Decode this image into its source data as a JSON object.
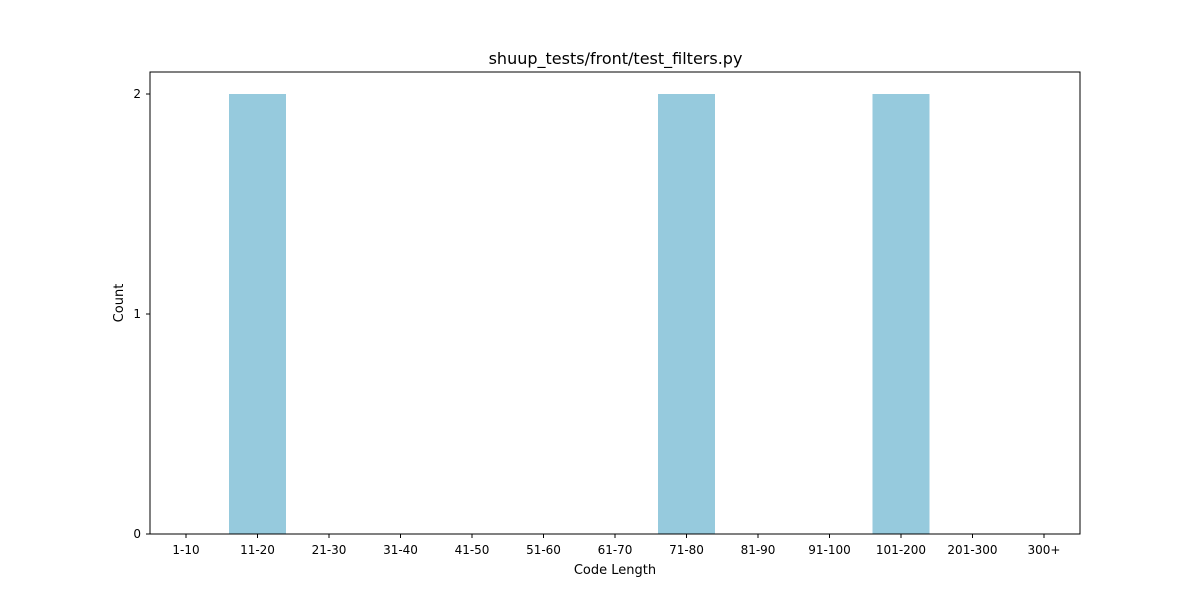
{
  "chart_data": {
    "type": "bar",
    "title": "shuup_tests/front/test_filters.py",
    "xlabel": "Code Length",
    "ylabel": "Count",
    "categories": [
      "1-10",
      "11-20",
      "21-30",
      "31-40",
      "41-50",
      "51-60",
      "61-70",
      "71-80",
      "81-90",
      "91-100",
      "101-200",
      "201-300",
      "300+"
    ],
    "values": [
      0,
      2,
      0,
      0,
      0,
      0,
      0,
      2,
      0,
      0,
      2,
      0,
      0
    ],
    "ylim": [
      0,
      2.1
    ],
    "yticks": [
      0,
      1,
      2
    ],
    "bar_color": "#96cadd",
    "grid": false,
    "legend": "none"
  }
}
